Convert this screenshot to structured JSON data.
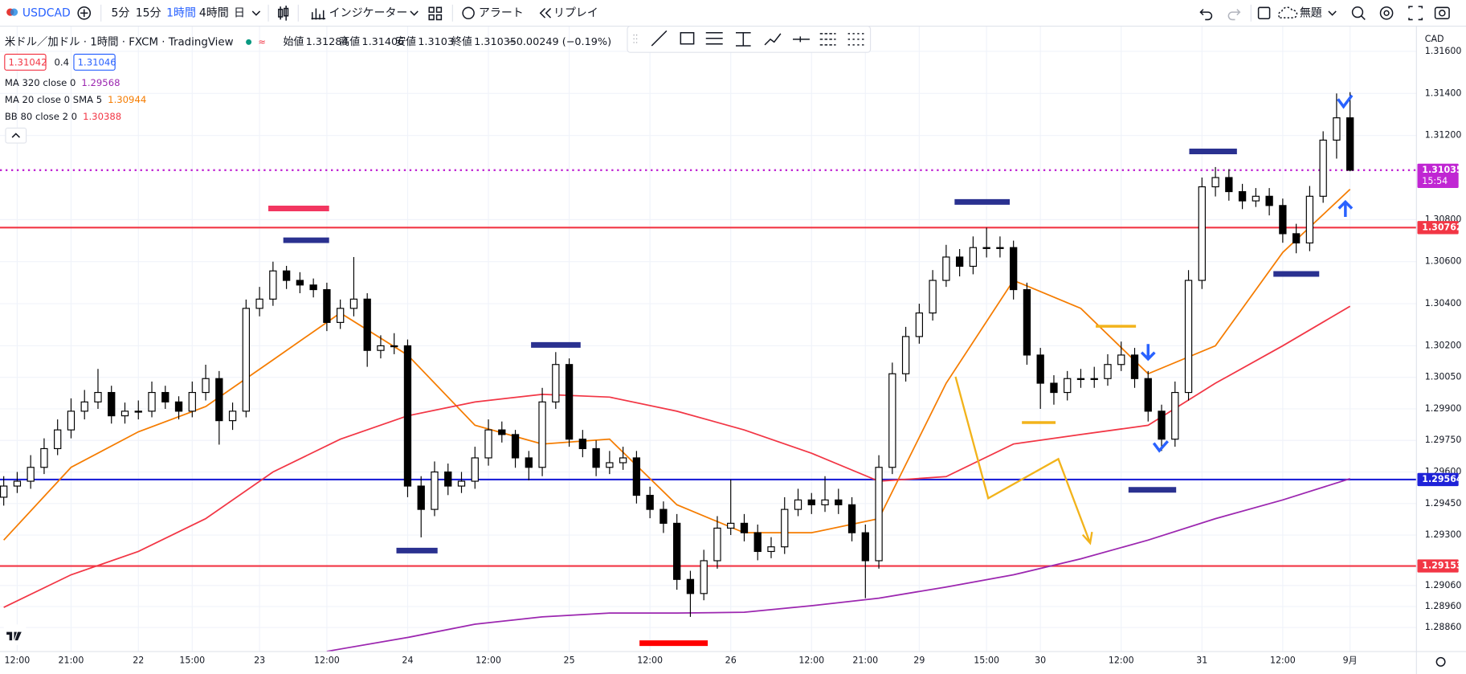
{
  "toolbar": {
    "symbol": "USDCAD",
    "intervals": [
      "5分",
      "15分",
      "1時間",
      "4時間",
      "日"
    ],
    "indicators": "インジケーター",
    "alert": "アラート",
    "replay": "リプレイ",
    "layout": "無題"
  },
  "legend": {
    "title": "米ドル／加ドル · 1時間 · FXCM · TradingView",
    "ohlc_labels": [
      "始値",
      "高値",
      "安値",
      "終値"
    ],
    "change": "−0.00249 (−0.19%)",
    "bid": 1.31042,
    "spread": 0.4,
    "ask": 1.31046
  },
  "chart_data": {
    "type": "candlestick",
    "currency": "CAD",
    "up_color": "#ffffff",
    "down_color": "#000000",
    "ylim": [
      1.28746,
      1.31702
    ],
    "yticks": [
      {
        "value": 1.316,
        "label": "1.31600"
      },
      {
        "value": 1.314,
        "label": "1.31400"
      },
      {
        "value": 1.312,
        "label": "1.31200"
      },
      {
        "value": 1.308,
        "label": "1.30800"
      },
      {
        "value": 1.306,
        "label": "1.30600"
      },
      {
        "value": 1.304,
        "label": "1.30400"
      },
      {
        "value": 1.302,
        "label": "1.30200"
      },
      {
        "value": 1.3005,
        "label": "1.30050"
      },
      {
        "value": 1.299,
        "label": "1.29900"
      },
      {
        "value": 1.2975,
        "label": "1.29750"
      },
      {
        "value": 1.296,
        "label": "1.29600"
      },
      {
        "value": 1.2945,
        "label": "1.29450"
      },
      {
        "value": 1.293,
        "label": "1.29300"
      },
      {
        "value": 1.2906,
        "label": "1.29060"
      },
      {
        "value": 1.2896,
        "label": "1.28960"
      },
      {
        "value": 1.2886,
        "label": "1.28860"
      }
    ],
    "grid": true,
    "categories": [
      null,
      "12:00",
      null,
      null,
      null,
      "21:00",
      null,
      null,
      null,
      null,
      "22",
      null,
      null,
      null,
      "15:00",
      null,
      null,
      null,
      null,
      "23",
      null,
      null,
      null,
      null,
      "12:00",
      null,
      null,
      null,
      null,
      null,
      "24",
      null,
      null,
      null,
      null,
      null,
      "12:00",
      null,
      null,
      null,
      null,
      null,
      "25",
      null,
      null,
      null,
      null,
      null,
      "12:00",
      null,
      null,
      null,
      null,
      null,
      "26",
      null,
      null,
      null,
      null,
      null,
      "12:00",
      null,
      null,
      null,
      "21:00",
      null,
      null,
      null,
      "29",
      null,
      null,
      null,
      null,
      "15:00",
      null,
      null,
      null,
      "30",
      null,
      null,
      null,
      null,
      null,
      "12:00",
      null,
      null,
      null,
      null,
      null,
      "31",
      null,
      null,
      null,
      null,
      null,
      "12:00",
      null,
      null,
      null,
      null,
      "9月"
    ],
    "ohlc": [
      [
        1.2948,
        1.2958,
        1.2944,
        1.29533
      ],
      [
        1.29533,
        1.296,
        1.295,
        1.29556
      ],
      [
        1.29556,
        1.2968,
        1.2952,
        1.29622
      ],
      [
        1.29622,
        1.2976,
        1.2959,
        1.29711
      ],
      [
        1.29711,
        1.2985,
        1.2968,
        1.298
      ],
      [
        1.298,
        1.2995,
        1.2976,
        1.29889
      ],
      [
        1.29889,
        1.2999,
        1.2985,
        1.29933
      ],
      [
        1.29933,
        1.3009,
        1.299,
        1.29978
      ],
      [
        1.29978,
        1.3001,
        1.2983,
        1.29867
      ],
      [
        1.29867,
        1.2993,
        1.2983,
        1.29889
      ],
      [
        1.29889,
        1.2994,
        1.2985,
        1.29889
      ],
      [
        1.29889,
        1.3003,
        1.2986,
        1.29978
      ],
      [
        1.29978,
        1.3001,
        1.299,
        1.29933
      ],
      [
        1.29933,
        1.2996,
        1.2985,
        1.29889
      ],
      [
        1.29889,
        1.3003,
        1.2986,
        1.29978
      ],
      [
        1.29978,
        1.3011,
        1.2994,
        1.30044
      ],
      [
        1.30044,
        1.3008,
        1.2973,
        1.29844
      ],
      [
        1.29844,
        1.2993,
        1.298,
        1.29889
      ],
      [
        1.29889,
        1.3042,
        1.2986,
        1.30378
      ],
      [
        1.30378,
        1.3048,
        1.3034,
        1.30422
      ],
      [
        1.30422,
        1.306,
        1.3039,
        1.30556
      ],
      [
        1.30556,
        1.3058,
        1.3047,
        1.30511
      ],
      [
        1.30511,
        1.3055,
        1.3045,
        1.30489
      ],
      [
        1.30489,
        1.3052,
        1.3043,
        1.30467
      ],
      [
        1.30467,
        1.305,
        1.3027,
        1.30311
      ],
      [
        1.30311,
        1.3042,
        1.3028,
        1.30378
      ],
      [
        1.30378,
        1.30622,
        1.3034,
        1.30422
      ],
      [
        1.30422,
        1.3045,
        1.301,
        1.30178
      ],
      [
        1.30178,
        1.3025,
        1.3014,
        1.302
      ],
      [
        1.302,
        1.3026,
        1.3016,
        1.302
      ],
      [
        1.302,
        1.3023,
        1.2948,
        1.29533
      ],
      [
        1.29533,
        1.2958,
        1.29289,
        1.29422
      ],
      [
        1.29422,
        1.2965,
        1.2939,
        1.296
      ],
      [
        1.296,
        1.2964,
        1.2949,
        1.29533
      ],
      [
        1.29533,
        1.296,
        1.295,
        1.29556
      ],
      [
        1.29556,
        1.2972,
        1.2952,
        1.29667
      ],
      [
        1.29667,
        1.2985,
        1.2963,
        1.298
      ],
      [
        1.298,
        1.2984,
        1.2974,
        1.29778
      ],
      [
        1.29778,
        1.298,
        1.2962,
        1.29667
      ],
      [
        1.29667,
        1.297,
        1.2956,
        1.29622
      ],
      [
        1.29622,
        1.3,
        1.2958,
        1.29933
      ],
      [
        1.29933,
        1.3017,
        1.299,
        1.30111
      ],
      [
        1.30111,
        1.3014,
        1.2972,
        1.29756
      ],
      [
        1.29756,
        1.298,
        1.2967,
        1.29711
      ],
      [
        1.29711,
        1.2975,
        1.2958,
        1.29622
      ],
      [
        1.29622,
        1.297,
        1.2959,
        1.29644
      ],
      [
        1.29644,
        1.2972,
        1.2961,
        1.29667
      ],
      [
        1.29667,
        1.297,
        1.2945,
        1.29489
      ],
      [
        1.29489,
        1.2953,
        1.2938,
        1.29422
      ],
      [
        1.29422,
        1.2946,
        1.2931,
        1.29356
      ],
      [
        1.29356,
        1.294,
        1.2904,
        1.29089
      ],
      [
        1.29089,
        1.2913,
        1.28911,
        1.29022
      ],
      [
        1.29022,
        1.2923,
        1.2899,
        1.29178
      ],
      [
        1.29178,
        1.2939,
        1.2914,
        1.29333
      ],
      [
        1.29333,
        1.29564,
        1.293,
        1.29356
      ],
      [
        1.29356,
        1.294,
        1.2927,
        1.29311
      ],
      [
        1.29311,
        1.2935,
        1.2918,
        1.29222
      ],
      [
        1.29222,
        1.2929,
        1.2919,
        1.29244
      ],
      [
        1.29244,
        1.2948,
        1.2921,
        1.29422
      ],
      [
        1.29422,
        1.2952,
        1.2939,
        1.29467
      ],
      [
        1.29467,
        1.295,
        1.294,
        1.29444
      ],
      [
        1.29444,
        1.2958,
        1.2941,
        1.29467
      ],
      [
        1.29467,
        1.2952,
        1.294,
        1.29444
      ],
      [
        1.29444,
        1.2948,
        1.2927,
        1.29311
      ],
      [
        1.29311,
        1.2935,
        1.29,
        1.29178
      ],
      [
        1.29178,
        1.2968,
        1.2914,
        1.29622
      ],
      [
        1.29622,
        1.3012,
        1.2959,
        1.30067
      ],
      [
        1.30067,
        1.3029,
        1.3003,
        1.30244
      ],
      [
        1.30244,
        1.304,
        1.3021,
        1.30356
      ],
      [
        1.30356,
        1.3056,
        1.3032,
        1.30511
      ],
      [
        1.30511,
        1.3068,
        1.3048,
        1.30622
      ],
      [
        1.30622,
        1.3066,
        1.3053,
        1.30578
      ],
      [
        1.30578,
        1.3072,
        1.3054,
        1.30667
      ],
      [
        1.30667,
        1.30762,
        1.3062,
        1.30667
      ],
      [
        1.30667,
        1.3072,
        1.3062,
        1.30667
      ],
      [
        1.30667,
        1.307,
        1.3042,
        1.30467
      ],
      [
        1.30467,
        1.305,
        1.3011,
        1.30156
      ],
      [
        1.30156,
        1.3019,
        1.299,
        1.30022
      ],
      [
        1.30022,
        1.3006,
        1.2992,
        1.29978
      ],
      [
        1.29978,
        1.3008,
        1.2994,
        1.30044
      ],
      [
        1.30044,
        1.3009,
        1.3,
        1.30044
      ],
      [
        1.30044,
        1.301,
        1.3,
        1.30044
      ],
      [
        1.30044,
        1.3016,
        1.3001,
        1.30111
      ],
      [
        1.30111,
        1.3022,
        1.3008,
        1.30156
      ],
      [
        1.30156,
        1.3019,
        1.3,
        1.30044
      ],
      [
        1.30044,
        1.3008,
        1.2984,
        1.29889
      ],
      [
        1.29889,
        1.2992,
        1.297,
        1.29756
      ],
      [
        1.29756,
        1.3003,
        1.2972,
        1.29978
      ],
      [
        1.29978,
        1.3056,
        1.2994,
        1.30511
      ],
      [
        1.30511,
        1.31,
        1.3047,
        1.30956
      ],
      [
        1.30956,
        1.3105,
        1.3091,
        1.31
      ],
      [
        1.31,
        1.3104,
        1.3089,
        1.30933
      ],
      [
        1.30933,
        1.3097,
        1.3085,
        1.30889
      ],
      [
        1.30889,
        1.3095,
        1.3086,
        1.30911
      ],
      [
        1.30911,
        1.3095,
        1.3082,
        1.30867
      ],
      [
        1.30867,
        1.309,
        1.3069,
        1.30733
      ],
      [
        1.30733,
        1.3078,
        1.3064,
        1.30689
      ],
      [
        1.30689,
        1.3096,
        1.3065,
        1.30911
      ],
      [
        1.30911,
        1.3122,
        1.3088,
        1.31178
      ],
      [
        1.31178,
        1.314,
        1.3109,
        1.31284
      ],
      [
        1.31284,
        1.31406,
        1.3103,
        1.31035
      ]
    ],
    "series": [
      {
        "name": "MA 320 close 0",
        "color": "#9c27b0",
        "x": [
          24,
          30,
          35,
          40,
          45,
          50,
          55,
          60,
          65,
          70,
          75,
          80,
          85,
          90,
          95,
          100
        ],
        "values": [
          1.28747,
          1.28813,
          1.28876,
          1.28911,
          1.28929,
          1.28929,
          1.28933,
          1.28964,
          1.29,
          1.29053,
          1.29111,
          1.29187,
          1.29276,
          1.29378,
          1.29467,
          1.29568
        ]
      },
      {
        "name": "MA 20 close 0 SMA 5",
        "color": "#f57c00",
        "x": [
          0,
          5,
          10,
          15,
          20,
          25,
          30,
          35,
          40,
          45,
          50,
          55,
          60,
          65,
          70,
          75,
          80,
          85,
          90,
          95,
          100
        ],
        "values": [
          1.29276,
          1.29622,
          1.29791,
          1.29911,
          1.30133,
          1.30356,
          1.30156,
          1.29822,
          1.29733,
          1.29756,
          1.29444,
          1.29311,
          1.29311,
          1.29378,
          1.30022,
          1.30511,
          1.30378,
          1.30067,
          1.302,
          1.30644,
          1.30944
        ]
      },
      {
        "name": "BB 80 close 2 0",
        "color": "#f23645",
        "x": [
          0,
          5,
          10,
          15,
          20,
          25,
          30,
          35,
          40,
          45,
          50,
          55,
          60,
          65,
          70,
          75,
          80,
          85,
          90,
          95,
          100
        ],
        "values": [
          1.28956,
          1.29111,
          1.29222,
          1.29378,
          1.296,
          1.29756,
          1.29867,
          1.29933,
          1.29969,
          1.29956,
          1.29889,
          1.298,
          1.29689,
          1.29556,
          1.29578,
          1.29733,
          1.29778,
          1.29822,
          1.30022,
          1.302,
          1.30388
        ]
      }
    ],
    "levels": [
      {
        "value": 1.30762,
        "color": "#f23645"
      },
      {
        "value": 1.29564,
        "color": "#1e22d8"
      },
      {
        "value": 1.29153,
        "color": "#f23645"
      }
    ],
    "last_price_color": "#c026d3",
    "countdown": "15:54"
  }
}
